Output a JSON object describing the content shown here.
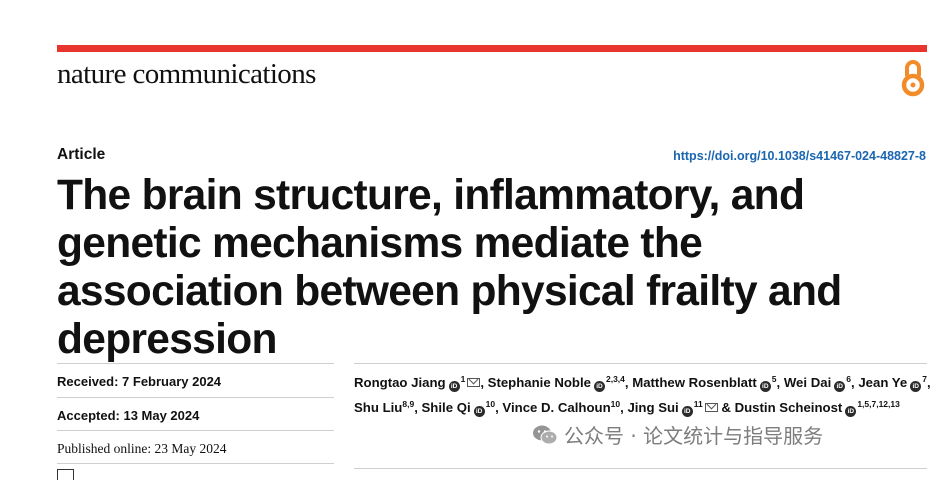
{
  "journal": {
    "name": "nature communications"
  },
  "colors": {
    "accent_rule": "#e8352e",
    "doi_link": "#1a66b0",
    "open_access_icon": "#f28c28"
  },
  "article": {
    "type": "Article",
    "doi": "https://doi.org/10.1038/s41467-024-48827-8",
    "title": "The brain structure, inflammatory, and genetic mechanisms mediate the association between physical frailty and depression"
  },
  "dates": {
    "received": "Received: 7 February 2024",
    "accepted": "Accepted: 13 May 2024",
    "published": "Published online: 23 May 2024"
  },
  "authors": [
    {
      "name": "Rongtao Jiang",
      "aff": "1",
      "orcid": true,
      "corresponding": true,
      "sep": ", "
    },
    {
      "name": "Stephanie Noble",
      "aff": "2,3,4",
      "orcid": true,
      "corresponding": false,
      "sep": ", "
    },
    {
      "name": "Matthew Rosenblatt",
      "aff": "5",
      "orcid": true,
      "corresponding": false,
      "sep": ", "
    },
    {
      "name": "Wei Dai",
      "aff": "6",
      "orcid": true,
      "corresponding": false,
      "sep": ", "
    },
    {
      "name": "Jean Ye",
      "aff": "7",
      "orcid": true,
      "corresponding": false,
      "sep": ", "
    },
    {
      "name": "Shu Liu",
      "aff": "8,9",
      "orcid": false,
      "corresponding": false,
      "sep": ", "
    },
    {
      "name": "Shile Qi",
      "aff": "10",
      "orcid": true,
      "corresponding": false,
      "sep": ", "
    },
    {
      "name": "Vince D. Calhoun",
      "aff": "10",
      "orcid": false,
      "corresponding": false,
      "sep": ", "
    },
    {
      "name": "Jing Sui",
      "aff": "11",
      "orcid": true,
      "corresponding": true,
      "sep": " & "
    },
    {
      "name": "Dustin Scheinost",
      "aff": "1,5,7,12,13",
      "orcid": true,
      "corresponding": false,
      "sep": ""
    }
  ],
  "icons": {
    "orcid_glyph": "iD",
    "open_access": "open-access-icon",
    "mail": "mail-icon"
  },
  "watermark": {
    "text": "公众号 · 论文统计与指导服务"
  }
}
